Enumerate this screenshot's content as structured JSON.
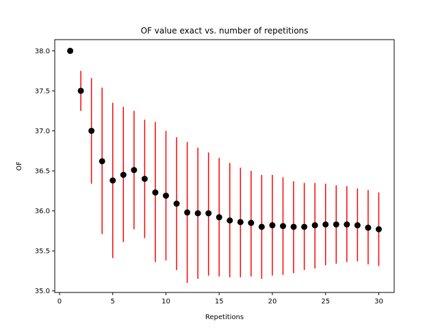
{
  "chart_data": {
    "type": "scatter",
    "title": "OF value exact vs. number of repetitions",
    "xlabel": "Repetitions",
    "ylabel": "OF",
    "xlim": [
      -0.45,
      31.45
    ],
    "ylim": [
      34.98,
      38.14
    ],
    "xticks": [
      0,
      5,
      10,
      15,
      20,
      25,
      30
    ],
    "yticks": [
      35.0,
      35.5,
      36.0,
      36.5,
      37.0,
      37.5,
      38.0
    ],
    "xtick_labels": [
      "0",
      "5",
      "10",
      "15",
      "20",
      "25",
      "30"
    ],
    "ytick_labels": [
      "35.0",
      "35.5",
      "36.0",
      "36.5",
      "37.0",
      "37.5",
      "38.0"
    ],
    "grid": false,
    "marker_color": "#000000",
    "errorbar_color": "#ff0000",
    "series": [
      {
        "x": [
          1,
          2,
          3,
          4,
          5,
          6,
          7,
          8,
          9,
          10,
          11,
          12,
          13,
          14,
          15,
          16,
          17,
          18,
          19,
          20,
          21,
          22,
          23,
          24,
          25,
          26,
          27,
          28,
          29,
          30
        ],
        "y": [
          38.0,
          37.5,
          37.0,
          36.62,
          36.38,
          36.45,
          36.51,
          36.4,
          36.23,
          36.19,
          36.09,
          35.98,
          35.97,
          35.97,
          35.92,
          35.88,
          35.86,
          35.85,
          35.8,
          35.82,
          35.81,
          35.8,
          35.8,
          35.82,
          35.83,
          35.83,
          35.83,
          35.82,
          35.79,
          35.77
        ],
        "y_low": [
          38.0,
          37.25,
          36.34,
          35.71,
          35.41,
          35.61,
          35.77,
          35.66,
          35.36,
          35.38,
          35.26,
          35.1,
          35.15,
          35.19,
          35.18,
          35.17,
          35.17,
          35.18,
          35.15,
          35.19,
          35.2,
          35.22,
          35.26,
          35.28,
          35.32,
          35.34,
          35.36,
          35.37,
          35.33,
          35.31
        ],
        "y_high": [
          38.0,
          37.75,
          37.66,
          37.54,
          37.35,
          37.3,
          37.25,
          37.14,
          37.11,
          37.0,
          36.92,
          36.86,
          36.79,
          36.73,
          36.66,
          36.6,
          36.54,
          36.5,
          36.45,
          36.45,
          36.42,
          36.37,
          36.35,
          36.35,
          36.34,
          36.32,
          36.31,
          36.28,
          36.26,
          36.23
        ]
      }
    ]
  }
}
